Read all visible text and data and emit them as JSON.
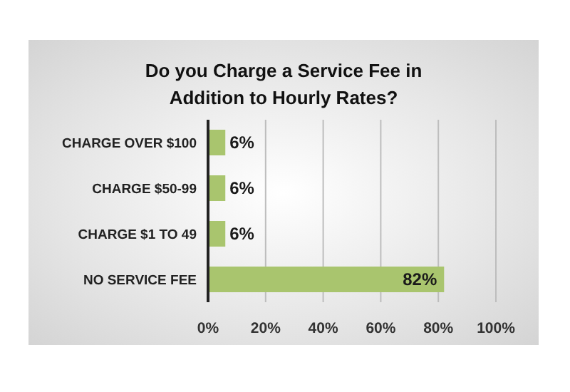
{
  "chart_data": {
    "type": "bar",
    "orientation": "horizontal",
    "title": "Do you Charge a Service Fee in Addition to Hourly Rates?",
    "categories": [
      "CHARGE OVER $100",
      "CHARGE $50-99",
      "CHARGE $1 TO 49",
      "NO SERVICE FEE"
    ],
    "values": [
      6,
      6,
      6,
      82
    ],
    "value_labels": [
      "6%",
      "6%",
      "6%",
      "82%"
    ],
    "color": "#a9c56e",
    "xlim": [
      0,
      100
    ],
    "xticks": [
      {
        "value": 0,
        "label": "0%"
      },
      {
        "value": 20,
        "label": "20%"
      },
      {
        "value": 40,
        "label": "40%"
      },
      {
        "value": 60,
        "label": "60%"
      },
      {
        "value": 80,
        "label": "80%"
      },
      {
        "value": 100,
        "label": "100%"
      }
    ],
    "grid": "x"
  }
}
